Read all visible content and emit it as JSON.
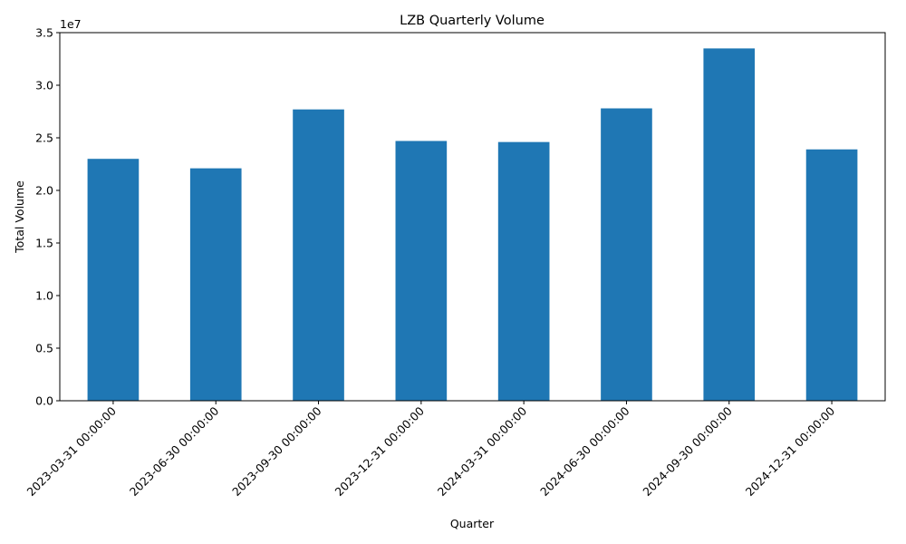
{
  "chart_data": {
    "type": "bar",
    "title": "LZB Quarterly Volume",
    "xlabel": "Quarter",
    "ylabel": "Total Volume",
    "y_offset_label": "1e7",
    "y_scale": 10000000,
    "ylim": [
      0,
      35000000
    ],
    "y_ticks": [
      0,
      5000000,
      10000000,
      15000000,
      20000000,
      25000000,
      30000000,
      35000000
    ],
    "y_tick_labels": [
      "0.0",
      "0.5",
      "1.0",
      "1.5",
      "2.0",
      "2.5",
      "3.0",
      "3.5"
    ],
    "categories": [
      "2023-03-31 00:00:00",
      "2023-06-30 00:00:00",
      "2023-09-30 00:00:00",
      "2023-12-31 00:00:00",
      "2024-03-31 00:00:00",
      "2024-06-30 00:00:00",
      "2024-09-30 00:00:00",
      "2024-12-31 00:00:00"
    ],
    "values": [
      23000000,
      22100000,
      27700000,
      24700000,
      24600000,
      27800000,
      33500000,
      23900000
    ],
    "bar_color": "#1f77b4",
    "grid": false,
    "legend": "none"
  }
}
